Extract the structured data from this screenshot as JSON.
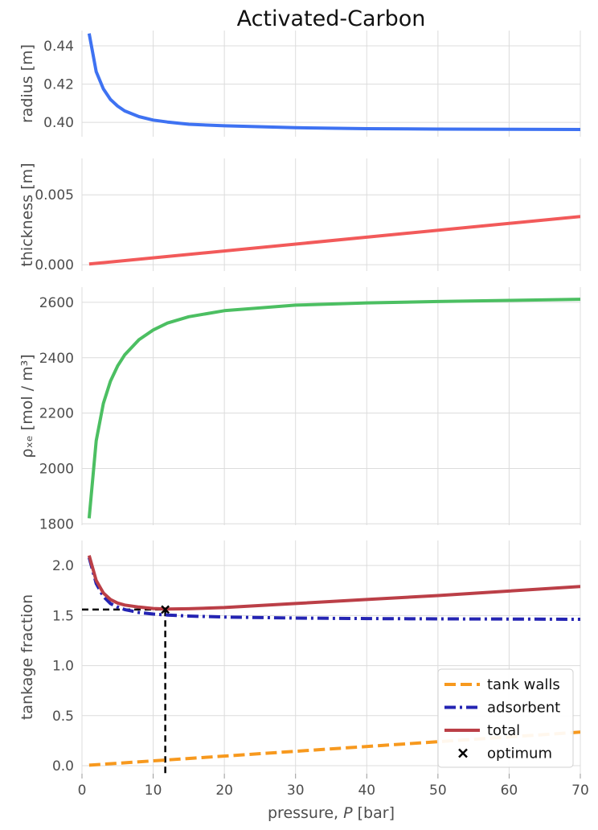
{
  "title": "Activated-Carbon",
  "xlabel_prefix": "pressure, ",
  "xlabel_var": "P",
  "xlabel_suffix": " [bar]",
  "x_ticks": [
    "0",
    "10",
    "20",
    "30",
    "40",
    "50",
    "60",
    "70"
  ],
  "colors": {
    "radius": "#3e72f2",
    "thickness": "#f25a5a",
    "density": "#4cbf62",
    "tank_walls": "#f7991e",
    "adsorbent": "#2424b3",
    "total": "#bb3f47",
    "optimum": "#000000",
    "grid": "#dcdcdc",
    "tick_text": "#4d4d4d"
  },
  "chart_data": [
    {
      "type": "line",
      "ylabel": "radius [m]",
      "xlim": [
        0,
        70
      ],
      "ylim": [
        0.3925,
        0.448
      ],
      "yticks": [
        0.4,
        0.42,
        0.44
      ],
      "ytick_labels": [
        "0.40",
        "0.42",
        "0.44"
      ],
      "grid": true,
      "series": [
        {
          "key": "radius",
          "x": [
            1,
            2,
            3,
            4,
            5,
            6,
            8,
            10,
            12,
            15,
            20,
            30,
            40,
            50,
            60,
            70
          ],
          "y": [
            0.4465,
            0.4265,
            0.4175,
            0.412,
            0.4085,
            0.406,
            0.403,
            0.4012,
            0.4002,
            0.399,
            0.3982,
            0.3972,
            0.3967,
            0.3965,
            0.3964,
            0.3963
          ]
        }
      ]
    },
    {
      "type": "line",
      "ylabel": "thickness [m]",
      "xlim": [
        0,
        70
      ],
      "ylim": [
        -0.00045,
        0.0076
      ],
      "yticks": [
        0.0,
        0.005
      ],
      "ytick_labels": [
        "0.000",
        "0.005"
      ],
      "grid": true,
      "series": [
        {
          "key": "thickness",
          "x": [
            1,
            70
          ],
          "y": [
            5e-05,
            0.00345
          ]
        }
      ]
    },
    {
      "type": "line",
      "ylabel": "ρₓₑ [mol / m³]",
      "xlim": [
        0,
        70
      ],
      "ylim": [
        1795,
        2655
      ],
      "yticks": [
        1800,
        2000,
        2200,
        2400,
        2600
      ],
      "ytick_labels": [
        "1800",
        "2000",
        "2200",
        "2400",
        "2600"
      ],
      "grid": true,
      "series": [
        {
          "key": "density",
          "x": [
            1,
            2,
            3,
            4,
            5,
            6,
            8,
            10,
            12,
            15,
            20,
            30,
            40,
            50,
            60,
            70
          ],
          "y": [
            1820,
            2100,
            2235,
            2315,
            2370,
            2410,
            2465,
            2500,
            2525,
            2548,
            2570,
            2590,
            2598,
            2603,
            2607,
            2611
          ]
        }
      ]
    },
    {
      "type": "line",
      "ylabel": "tankage fraction",
      "xlabel": "pressure, P [bar]",
      "xlim": [
        0,
        70
      ],
      "ylim": [
        -0.08,
        2.25
      ],
      "yticks": [
        0.0,
        0.5,
        1.0,
        1.5,
        2.0
      ],
      "ytick_labels": [
        "0.0",
        "0.5",
        "1.0",
        "1.5",
        "2.0"
      ],
      "grid": true,
      "legend_position": "bottom-right",
      "series": [
        {
          "key": "tank_walls",
          "name": "tank walls",
          "style": "dashed",
          "x": [
            1,
            70
          ],
          "y": [
            0.005,
            0.335
          ]
        },
        {
          "key": "adsorbent",
          "name": "adsorbent",
          "style": "dashdot",
          "x": [
            1,
            2,
            3,
            4,
            5,
            6,
            8,
            10,
            12,
            15,
            20,
            30,
            40,
            50,
            60,
            70
          ],
          "y": [
            2.08,
            1.82,
            1.69,
            1.62,
            1.585,
            1.56,
            1.53,
            1.515,
            1.505,
            1.495,
            1.485,
            1.475,
            1.47,
            1.467,
            1.465,
            1.463
          ]
        },
        {
          "key": "total",
          "name": "total",
          "style": "solid",
          "x": [
            1,
            2,
            3,
            4,
            5,
            6,
            8,
            10,
            12,
            15,
            20,
            30,
            40,
            50,
            60,
            70
          ],
          "y": [
            2.1,
            1.85,
            1.725,
            1.66,
            1.625,
            1.605,
            1.585,
            1.57,
            1.565,
            1.568,
            1.58,
            1.62,
            1.66,
            1.7,
            1.745,
            1.79
          ]
        }
      ],
      "optimum": {
        "name": "optimum",
        "x": 11.7,
        "y": 1.56
      }
    }
  ]
}
